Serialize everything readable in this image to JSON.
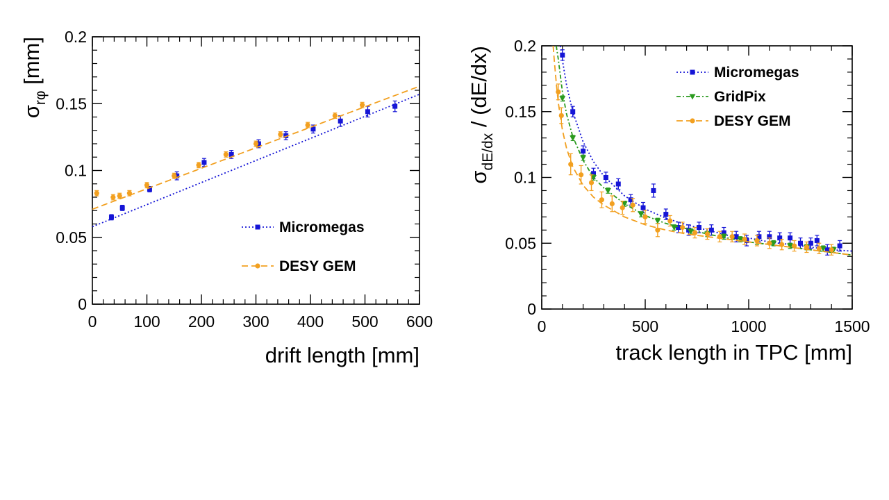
{
  "chart_data": [
    {
      "type": "scatter",
      "xlabel": "drift length [mm]",
      "ylabel": {
        "main": "σ",
        "sub": "rφ",
        "rest": " [mm]"
      },
      "xlim": [
        0,
        600
      ],
      "ylim": [
        0,
        0.2
      ],
      "xticks": [
        0,
        100,
        200,
        300,
        400,
        500,
        600
      ],
      "yticks": [
        0,
        0.05,
        0.1,
        0.15,
        0.2
      ],
      "xtick_labels": [
        "0",
        "100",
        "200",
        "300",
        "400",
        "500",
        "600"
      ],
      "ytick_labels": [
        "0",
        "0.05",
        "0.1",
        "0.15",
        "0.2"
      ],
      "grid": false,
      "legend_position": "bottom-right",
      "series": [
        {
          "name": "Micromegas",
          "color": "#1515d6",
          "marker": "square",
          "line_style": "dotted",
          "x": [
            35,
            55,
            105,
            155,
            205,
            255,
            305,
            355,
            405,
            455,
            505,
            555
          ],
          "y": [
            0.065,
            0.072,
            0.086,
            0.096,
            0.106,
            0.112,
            0.12,
            0.126,
            0.131,
            0.137,
            0.144,
            0.148
          ],
          "err": [
            0.002,
            0.002,
            0.002,
            0.003,
            0.003,
            0.003,
            0.003,
            0.003,
            0.003,
            0.004,
            0.004,
            0.004
          ],
          "fit_x": [
            0,
            600
          ],
          "fit_y": [
            0.058,
            0.157
          ]
        },
        {
          "name": "DESY GEM",
          "color": "#f2a020",
          "marker": "circle",
          "line_style": "dashed",
          "x": [
            8,
            38,
            50,
            68,
            100,
            150,
            195,
            245,
            300,
            345,
            395,
            445,
            495
          ],
          "y": [
            0.083,
            0.08,
            0.081,
            0.083,
            0.089,
            0.096,
            0.104,
            0.112,
            0.12,
            0.127,
            0.134,
            0.141,
            0.149
          ],
          "err": [
            0.002,
            0.002,
            0.002,
            0.002,
            0.002,
            0.002,
            0.002,
            0.002,
            0.002,
            0.002,
            0.002,
            0.002,
            0.002
          ],
          "fit_x": [
            0,
            600
          ],
          "fit_y": [
            0.071,
            0.163
          ]
        }
      ]
    },
    {
      "type": "scatter",
      "xlabel": "track length in TPC [mm]",
      "ylabel": {
        "main": "σ",
        "sub": "dE/dx",
        "rest": " / (dE/dx)"
      },
      "xlim": [
        0,
        1500
      ],
      "ylim": [
        0,
        0.2
      ],
      "xticks": [
        0,
        500,
        1000,
        1500
      ],
      "yticks": [
        0,
        0.05,
        0.1,
        0.15,
        0.2
      ],
      "xtick_labels": [
        "0",
        "500",
        "1000",
        "1500"
      ],
      "ytick_labels": [
        "0",
        "0.05",
        "0.1",
        "0.15",
        "0.2"
      ],
      "grid": false,
      "legend_position": "top-right",
      "series": [
        {
          "name": "Micromegas",
          "color": "#1515d6",
          "marker": "square",
          "line_style": "dotted",
          "x": [
            100,
            150,
            200,
            250,
            310,
            370,
            430,
            490,
            540,
            600,
            660,
            710,
            760,
            820,
            880,
            940,
            990,
            1050,
            1100,
            1150,
            1200,
            1250,
            1300,
            1330,
            1380,
            1440
          ],
          "y": [
            0.193,
            0.15,
            0.12,
            0.103,
            0.1,
            0.095,
            0.083,
            0.077,
            0.09,
            0.072,
            0.062,
            0.06,
            0.062,
            0.06,
            0.058,
            0.055,
            0.052,
            0.055,
            0.055,
            0.054,
            0.054,
            0.05,
            0.05,
            0.052,
            0.045,
            0.048
          ],
          "err": [
            0.004,
            0.004,
            0.004,
            0.004,
            0.004,
            0.004,
            0.004,
            0.004,
            0.005,
            0.004,
            0.004,
            0.004,
            0.004,
            0.004,
            0.004,
            0.004,
            0.004,
            0.004,
            0.004,
            0.004,
            0.004,
            0.004,
            0.004,
            0.004,
            0.004,
            0.004
          ],
          "fit_x": [
            90,
            100,
            120,
            150,
            200,
            250,
            300,
            400,
            500,
            600,
            700,
            800,
            900,
            1000,
            1100,
            1200,
            1300,
            1400,
            1500
          ],
          "fit_y": [
            0.2,
            0.189,
            0.17,
            0.15,
            0.127,
            0.112,
            0.101,
            0.086,
            0.076,
            0.069,
            0.064,
            0.06,
            0.056,
            0.054,
            0.051,
            0.049,
            0.047,
            0.045,
            0.044
          ]
        },
        {
          "name": "GridPix",
          "color": "#2a9a1e",
          "marker": "triangle-down",
          "line_style": "dash-dot",
          "x": [
            100,
            150,
            200,
            250,
            320,
            400,
            480,
            560,
            640,
            720,
            800,
            880,
            960,
            1040,
            1120,
            1200,
            1280,
            1360,
            1410
          ],
          "y": [
            0.16,
            0.13,
            0.115,
            0.1,
            0.09,
            0.08,
            0.072,
            0.067,
            0.062,
            0.059,
            0.057,
            0.055,
            0.053,
            0.051,
            0.05,
            0.048,
            0.047,
            0.046,
            0.045
          ],
          "err": [
            0.002,
            0.002,
            0.002,
            0.002,
            0.002,
            0.002,
            0.002,
            0.002,
            0.002,
            0.002,
            0.002,
            0.002,
            0.002,
            0.002,
            0.002,
            0.002,
            0.002,
            0.002,
            0.002
          ],
          "fit_x": [
            70,
            80,
            100,
            120,
            150,
            200,
            250,
            300,
            400,
            500,
            600,
            700,
            800,
            900,
            1000,
            1100,
            1200,
            1300,
            1400,
            1500
          ],
          "fit_y": [
            0.2,
            0.19,
            0.165,
            0.148,
            0.131,
            0.113,
            0.1,
            0.092,
            0.08,
            0.071,
            0.065,
            0.061,
            0.057,
            0.054,
            0.051,
            0.049,
            0.047,
            0.045,
            0.043,
            0.041
          ]
        },
        {
          "name": "DESY GEM",
          "color": "#f2a020",
          "marker": "circle",
          "line_style": "dashed",
          "x": [
            80,
            95,
            140,
            190,
            240,
            290,
            340,
            390,
            440,
            500,
            560,
            620,
            680,
            740,
            800,
            860,
            920,
            980,
            1040,
            1100,
            1160,
            1220,
            1280,
            1340,
            1400
          ],
          "y": [
            0.165,
            0.147,
            0.11,
            0.102,
            0.096,
            0.083,
            0.08,
            0.077,
            0.079,
            0.07,
            0.06,
            0.067,
            0.062,
            0.058,
            0.057,
            0.055,
            0.055,
            0.053,
            0.052,
            0.05,
            0.049,
            0.048,
            0.047,
            0.046,
            0.045
          ],
          "err": [
            0.006,
            0.006,
            0.008,
            0.007,
            0.006,
            0.006,
            0.006,
            0.005,
            0.005,
            0.005,
            0.005,
            0.004,
            0.004,
            0.004,
            0.004,
            0.004,
            0.004,
            0.004,
            0.004,
            0.004,
            0.004,
            0.004,
            0.004,
            0.004,
            0.004
          ],
          "fit_x": [
            55,
            60,
            70,
            80,
            100,
            120,
            150,
            200,
            250,
            300,
            400,
            500,
            600,
            700,
            800,
            900,
            1000,
            1100,
            1200,
            1300,
            1400,
            1500
          ],
          "fit_y": [
            0.2,
            0.19,
            0.172,
            0.157,
            0.136,
            0.122,
            0.108,
            0.094,
            0.085,
            0.079,
            0.07,
            0.064,
            0.06,
            0.057,
            0.055,
            0.053,
            0.051,
            0.049,
            0.047,
            0.045,
            0.043,
            0.041
          ]
        }
      ]
    }
  ]
}
